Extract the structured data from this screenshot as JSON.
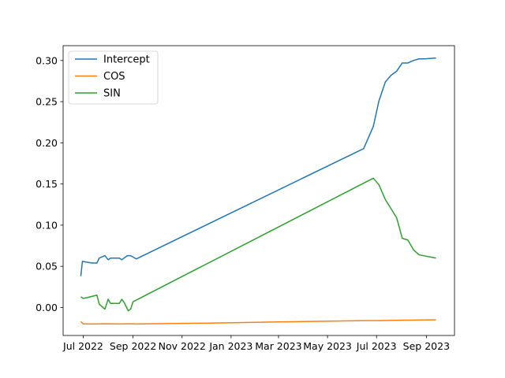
{
  "chart_data": {
    "type": "line",
    "title": "",
    "xlabel": "",
    "ylabel": "",
    "x_tick_labels": [
      "Jul 2022",
      "Sep 2022",
      "Nov 2022",
      "Jan 2023",
      "Mar 2023",
      "May 2023",
      "Jul 2023",
      "Sep 2023"
    ],
    "x_ticks": [
      "2022-07-01",
      "2022-09-01",
      "2022-11-01",
      "2023-01-01",
      "2023-03-01",
      "2023-05-01",
      "2023-07-01",
      "2023-09-01"
    ],
    "xlim": [
      "2022-06-06",
      "2023-10-06"
    ],
    "y_tick_labels": [
      "0.00",
      "0.05",
      "0.10",
      "0.15",
      "0.20",
      "0.25",
      "0.30"
    ],
    "y_ticks": [
      0,
      0.05,
      0.1,
      0.15,
      0.2,
      0.25,
      0.3
    ],
    "ylim": [
      -0.034,
      0.318
    ],
    "grid": false,
    "legend_position": "top-left",
    "series": [
      {
        "name": "Intercept",
        "color": "#1f77b4",
        "points": [
          [
            "2022-06-28",
            0.038
          ],
          [
            "2022-06-30",
            0.056
          ],
          [
            "2022-07-06",
            0.055
          ],
          [
            "2022-07-12",
            0.054
          ],
          [
            "2022-07-18",
            0.054
          ],
          [
            "2022-07-21",
            0.06
          ],
          [
            "2022-07-28",
            0.063
          ],
          [
            "2022-08-01",
            0.058
          ],
          [
            "2022-08-04",
            0.06
          ],
          [
            "2022-08-09",
            0.06
          ],
          [
            "2022-08-15",
            0.06
          ],
          [
            "2022-08-18",
            0.058
          ],
          [
            "2022-08-25",
            0.063
          ],
          [
            "2022-08-29",
            0.063
          ],
          [
            "2022-09-05",
            0.059
          ],
          [
            "2023-06-15",
            0.193
          ],
          [
            "2023-06-27",
            0.22
          ],
          [
            "2023-07-04",
            0.251
          ],
          [
            "2023-07-12",
            0.274
          ],
          [
            "2023-07-19",
            0.282
          ],
          [
            "2023-07-26",
            0.287
          ],
          [
            "2023-08-02",
            0.297
          ],
          [
            "2023-08-09",
            0.297
          ],
          [
            "2023-08-16",
            0.3
          ],
          [
            "2023-08-23",
            0.302
          ],
          [
            "2023-08-30",
            0.302
          ],
          [
            "2023-09-13",
            0.303
          ]
        ]
      },
      {
        "name": "COS",
        "color": "#ff7f0e",
        "points": [
          [
            "2022-06-28",
            -0.017
          ],
          [
            "2022-07-01",
            -0.02
          ],
          [
            "2022-07-18",
            -0.02
          ],
          [
            "2022-07-28",
            -0.0198
          ],
          [
            "2022-08-15",
            -0.02
          ],
          [
            "2022-08-29",
            -0.0198
          ],
          [
            "2022-09-05",
            -0.02
          ],
          [
            "2022-12-01",
            -0.019
          ],
          [
            "2023-03-01",
            -0.0175
          ],
          [
            "2023-06-15",
            -0.016
          ],
          [
            "2023-07-04",
            -0.016
          ],
          [
            "2023-08-02",
            -0.0155
          ],
          [
            "2023-09-13",
            -0.015
          ]
        ]
      },
      {
        "name": "SIN",
        "color": "#2ca02c",
        "points": [
          [
            "2022-06-28",
            0.013
          ],
          [
            "2022-07-01",
            0.011
          ],
          [
            "2022-07-06",
            0.012
          ],
          [
            "2022-07-18",
            0.015
          ],
          [
            "2022-07-21",
            0.004
          ],
          [
            "2022-07-28",
            -0.002
          ],
          [
            "2022-08-01",
            0.01
          ],
          [
            "2022-08-04",
            0.005
          ],
          [
            "2022-08-09",
            0.005
          ],
          [
            "2022-08-15",
            0.005
          ],
          [
            "2022-08-18",
            0.01
          ],
          [
            "2022-08-21",
            0.006
          ],
          [
            "2022-08-26",
            -0.004
          ],
          [
            "2022-08-29",
            -0.002
          ],
          [
            "2022-09-01",
            0.007
          ],
          [
            "2022-09-05",
            0.009
          ],
          [
            "2023-06-15",
            0.151
          ],
          [
            "2023-06-27",
            0.157
          ],
          [
            "2023-07-04",
            0.149
          ],
          [
            "2023-07-12",
            0.131
          ],
          [
            "2023-07-19",
            0.12
          ],
          [
            "2023-07-26",
            0.109
          ],
          [
            "2023-08-02",
            0.084
          ],
          [
            "2023-08-09",
            0.082
          ],
          [
            "2023-08-16",
            0.07
          ],
          [
            "2023-08-23",
            0.064
          ],
          [
            "2023-09-13",
            0.06
          ]
        ]
      }
    ]
  }
}
